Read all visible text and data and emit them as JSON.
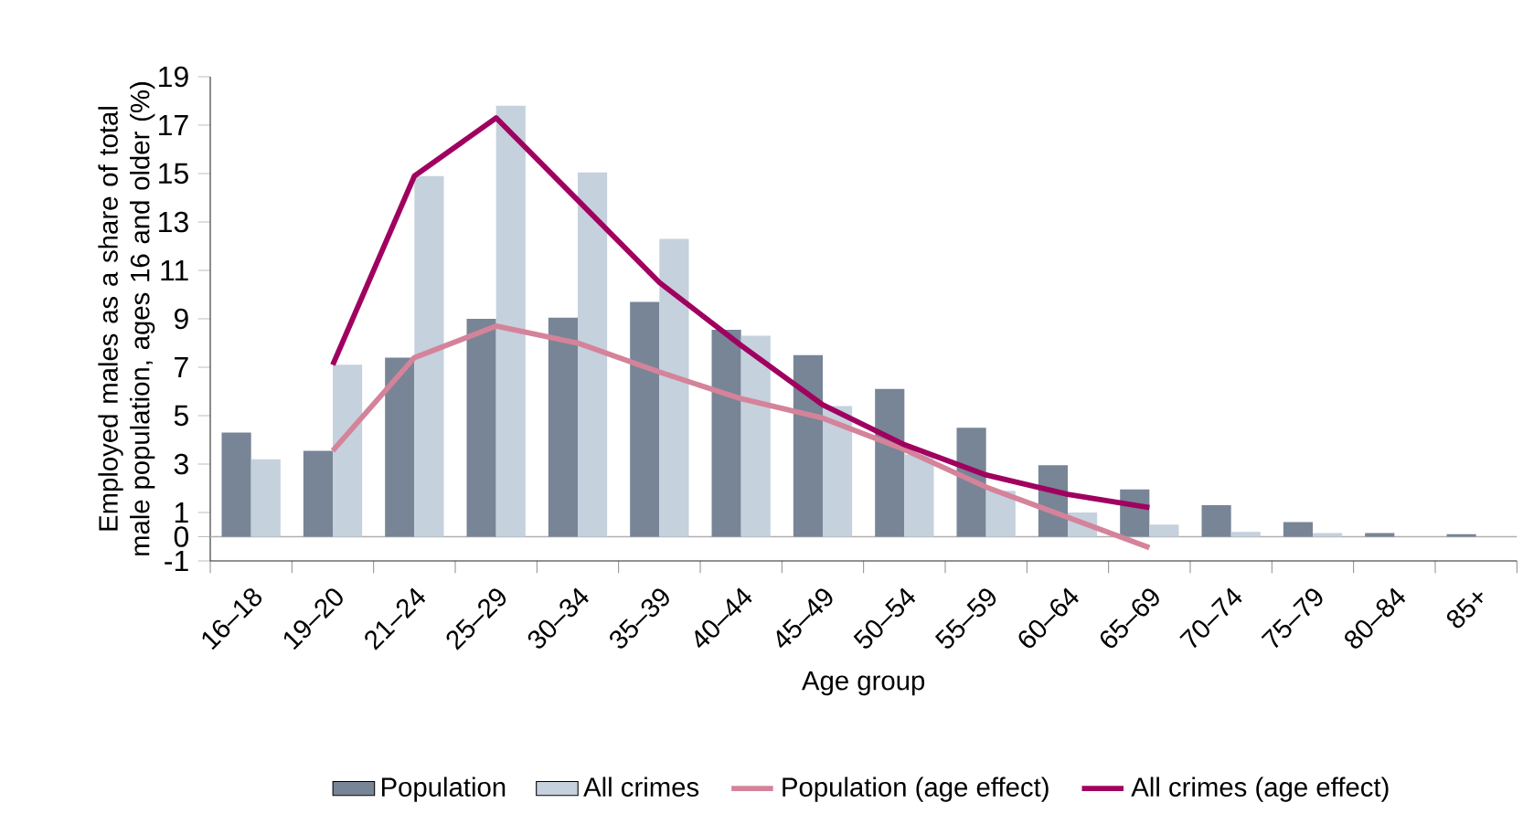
{
  "chart_data": {
    "type": "bar",
    "xlabel": "Age group",
    "ylabel": "Employed males as a share of total male population, ages 16 and older (%)",
    "categories": [
      "16–18",
      "19–20",
      "21–24",
      "25–29",
      "30–34",
      "35–39",
      "40–44",
      "45–49",
      "50–54",
      "55–59",
      "60–64",
      "65–69",
      "70–74",
      "75–79",
      "80–84",
      "85+"
    ],
    "series": [
      {
        "name": "Population",
        "color": "#778596",
        "values": [
          4.3,
          3.55,
          7.4,
          9.0,
          9.05,
          9.7,
          8.55,
          7.5,
          6.1,
          4.5,
          2.95,
          1.95,
          1.3,
          0.6,
          0.15,
          0.1
        ]
      },
      {
        "name": "All crimes",
        "color": "#c5d1dd",
        "values": [
          3.2,
          7.1,
          14.9,
          17.8,
          15.05,
          12.3,
          8.3,
          5.4,
          3.4,
          1.9,
          1.0,
          0.5,
          0.2,
          0.15,
          null,
          null
        ]
      },
      {
        "name": "Population (age effect)",
        "type": "line",
        "color": "#d4839a",
        "values": [
          null,
          3.55,
          7.4,
          8.7,
          8.0,
          6.8,
          5.7,
          4.9,
          3.6,
          2.05,
          0.8,
          -0.45,
          null,
          null,
          null,
          null
        ]
      },
      {
        "name": "All crimes (age effect)",
        "type": "line",
        "color": "#a0005f",
        "values": [
          null,
          7.1,
          14.9,
          17.3,
          13.9,
          10.5,
          7.9,
          5.45,
          3.8,
          2.55,
          1.75,
          1.2,
          null,
          null,
          null,
          null
        ]
      }
    ],
    "ylim": [
      -1,
      19
    ],
    "yticks": [
      -1,
      0,
      1,
      3,
      5,
      7,
      9,
      11,
      13,
      15,
      17,
      19
    ],
    "ref_lines": [
      {
        "axis": "y",
        "value": 0,
        "color": "#b0b0b0"
      }
    ],
    "legend": "bottom"
  }
}
